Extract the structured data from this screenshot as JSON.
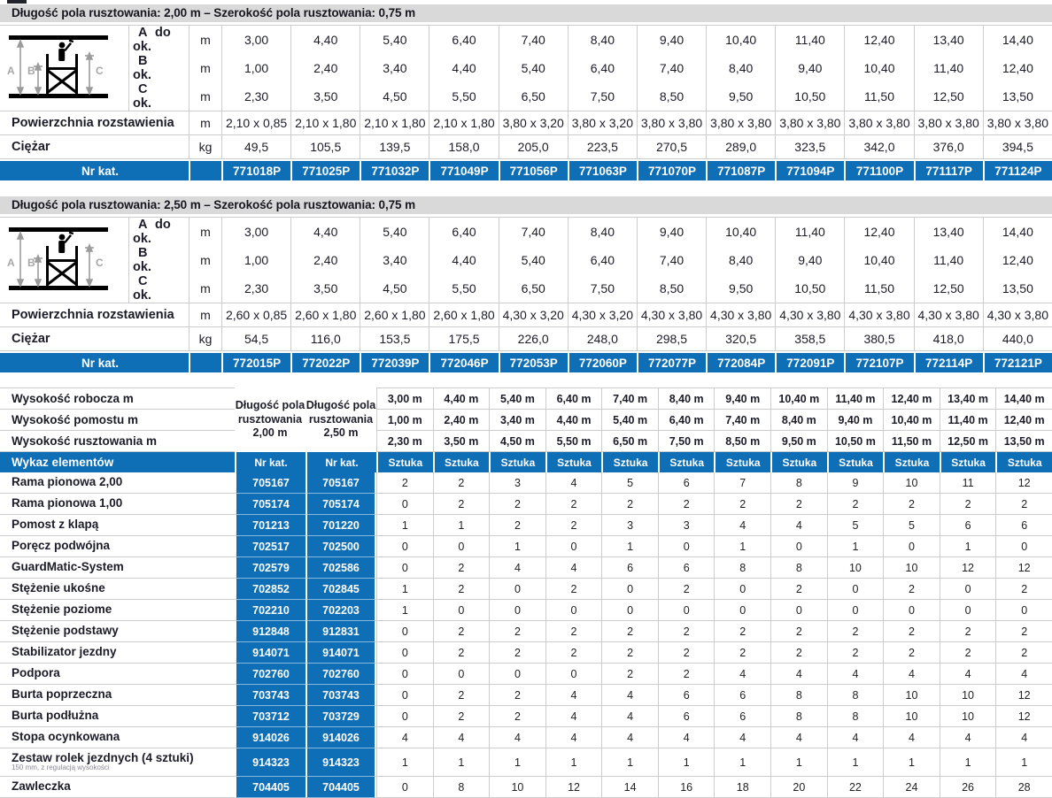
{
  "colors": {
    "accent_blue": "#0e6eb6",
    "title_bar_gray": "#d9d9d9",
    "grid_line": "#cccccc",
    "dark_text": "#1c1c28"
  },
  "icons": {
    "diagram": "scaffold-height-diagram-icon"
  },
  "table1": {
    "title": "Długość pola rusztowania: 2,00 m – Szerokość pola rusztowania: 0,75 m",
    "letter_rows": [
      {
        "letter": "A",
        "mid": "do",
        "approx": "ok.",
        "unit": "m",
        "values": [
          "3,00",
          "4,40",
          "5,40",
          "6,40",
          "7,40",
          "8,40",
          "9,40",
          "10,40",
          "11,40",
          "12,40",
          "13,40",
          "14,40"
        ]
      },
      {
        "letter": "B",
        "mid": "",
        "approx": "ok.",
        "unit": "m",
        "values": [
          "1,00",
          "2,40",
          "3,40",
          "4,40",
          "5,40",
          "6,40",
          "7,40",
          "8,40",
          "9,40",
          "10,40",
          "11,40",
          "12,40"
        ]
      },
      {
        "letter": "C",
        "mid": "",
        "approx": "ok.",
        "unit": "m",
        "values": [
          "2,30",
          "3,50",
          "4,50",
          "5,50",
          "6,50",
          "7,50",
          "8,50",
          "9,50",
          "10,50",
          "11,50",
          "12,50",
          "13,50"
        ]
      }
    ],
    "spread": {
      "label": "Powierzchnia rozstawienia",
      "unit": "m",
      "values": [
        "2,10 x 0,85",
        "2,10 x 1,80",
        "2,10 x 1,80",
        "2,10 x 1,80",
        "3,80 x 3,20",
        "3,80 x 3,20",
        "3,80 x 3,80",
        "3,80 x 3,80",
        "3,80 x 3,80",
        "3,80 x 3,80",
        "3,80 x 3,80",
        "3,80 x 3,80"
      ]
    },
    "weight": {
      "label": "Ciężar",
      "unit": "kg",
      "values": [
        "49,5",
        "105,5",
        "139,5",
        "158,0",
        "205,0",
        "223,5",
        "270,5",
        "289,0",
        "323,5",
        "342,0",
        "376,0",
        "394,5"
      ]
    },
    "catalog": {
      "label": "Nr kat.",
      "values": [
        "771018P",
        "771025P",
        "771032P",
        "771049P",
        "771056P",
        "771063P",
        "771070P",
        "771087P",
        "771094P",
        "771100P",
        "771117P",
        "771124P"
      ]
    }
  },
  "table2": {
    "title": "Długość pola rusztowania: 2,50 m – Szerokość pola rusztowania: 0,75 m",
    "letter_rows": [
      {
        "letter": "A",
        "mid": "do",
        "approx": "ok.",
        "unit": "m",
        "values": [
          "3,00",
          "4,40",
          "5,40",
          "6,40",
          "7,40",
          "8,40",
          "9,40",
          "10,40",
          "11,40",
          "12,40",
          "13,40",
          "14,40"
        ]
      },
      {
        "letter": "B",
        "mid": "",
        "approx": "ok.",
        "unit": "m",
        "values": [
          "1,00",
          "2,40",
          "3,40",
          "4,40",
          "5,40",
          "6,40",
          "7,40",
          "8,40",
          "9,40",
          "10,40",
          "11,40",
          "12,40"
        ]
      },
      {
        "letter": "C",
        "mid": "",
        "approx": "ok.",
        "unit": "m",
        "values": [
          "2,30",
          "3,50",
          "4,50",
          "5,50",
          "6,50",
          "7,50",
          "8,50",
          "9,50",
          "10,50",
          "11,50",
          "12,50",
          "13,50"
        ]
      }
    ],
    "spread": {
      "label": "Powierzchnia rozstawienia",
      "unit": "m",
      "values": [
        "2,60 x 0,85",
        "2,60 x 1,80",
        "2,60 x 1,80",
        "2,60 x 1,80",
        "4,30 x 3,20",
        "4,30 x 3,20",
        "4,30 x 3,80",
        "4,30 x 3,80",
        "4,30 x 3,80",
        "4,30 x 3,80",
        "4,30 x 3,80",
        "4,30 x 3,80"
      ]
    },
    "weight": {
      "label": "Ciężar",
      "unit": "kg",
      "values": [
        "54,5",
        "116,0",
        "153,5",
        "175,5",
        "226,0",
        "248,0",
        "298,5",
        "320,5",
        "358,5",
        "380,5",
        "418,0",
        "440,0"
      ]
    },
    "catalog": {
      "label": "Nr kat.",
      "values": [
        "772015P",
        "772022P",
        "772039P",
        "772046P",
        "772053P",
        "772060P",
        "772077P",
        "772084P",
        "772091P",
        "772107P",
        "772114P",
        "772121P"
      ]
    }
  },
  "table3": {
    "height_rows": [
      {
        "label": "Wysokość robocza m",
        "values": [
          "3,00 m",
          "4,40 m",
          "5,40 m",
          "6,40 m",
          "7,40 m",
          "8,40 m",
          "9,40 m",
          "10,40 m",
          "11,40 m",
          "12,40 m",
          "13,40 m",
          "14,40 m"
        ]
      },
      {
        "label": "Wysokość pomostu m",
        "values": [
          "1,00 m",
          "2,40 m",
          "3,40 m",
          "4,40 m",
          "5,40 m",
          "6,40 m",
          "7,40 m",
          "8,40 m",
          "9,40 m",
          "10,40 m",
          "11,40 m",
          "12,40 m"
        ]
      },
      {
        "label": "Wysokość rusztowania m",
        "values": [
          "2,30 m",
          "3,50 m",
          "4,50 m",
          "5,50 m",
          "6,50 m",
          "7,50 m",
          "8,50 m",
          "9,50 m",
          "10,50 m",
          "11,50 m",
          "12,50 m",
          "13,50 m"
        ]
      }
    ],
    "col_group_headers": [
      "Długość pola rusztowania 2,00 m",
      "Długość pola rusztowania 2,50 m"
    ],
    "header_row": {
      "label": "Wykaz elementów",
      "nrkat": "Nr kat.",
      "sztuka": "Sztuka"
    },
    "components": [
      {
        "name": "Rama pionowa 2,00",
        "sub": "",
        "kat1": "705167",
        "kat2": "705167",
        "qty": [
          2,
          2,
          3,
          4,
          5,
          6,
          7,
          8,
          9,
          10,
          11,
          12
        ]
      },
      {
        "name": "Rama pionowa 1,00",
        "sub": "",
        "kat1": "705174",
        "kat2": "705174",
        "qty": [
          0,
          2,
          2,
          2,
          2,
          2,
          2,
          2,
          2,
          2,
          2,
          2
        ]
      },
      {
        "name": "Pomost z klapą",
        "sub": "",
        "kat1": "701213",
        "kat2": "701220",
        "qty": [
          1,
          1,
          2,
          2,
          3,
          3,
          4,
          4,
          5,
          5,
          6,
          6
        ]
      },
      {
        "name": "Poręcz podwójna",
        "sub": "",
        "kat1": "702517",
        "kat2": "702500",
        "qty": [
          0,
          0,
          1,
          0,
          1,
          0,
          1,
          0,
          1,
          0,
          1,
          0
        ]
      },
      {
        "name": "GuardMatic-System",
        "sub": "",
        "kat1": "702579",
        "kat2": "702586",
        "qty": [
          0,
          2,
          4,
          4,
          6,
          6,
          8,
          8,
          10,
          10,
          12,
          12
        ]
      },
      {
        "name": "Stężenie ukośne",
        "sub": "",
        "kat1": "702852",
        "kat2": "702845",
        "qty": [
          1,
          2,
          0,
          2,
          0,
          2,
          0,
          2,
          0,
          2,
          0,
          2
        ]
      },
      {
        "name": "Stężenie poziome",
        "sub": "",
        "kat1": "702210",
        "kat2": "702203",
        "qty": [
          1,
          0,
          0,
          0,
          0,
          0,
          0,
          0,
          0,
          0,
          0,
          0
        ]
      },
      {
        "name": "Stężenie podstawy",
        "sub": "",
        "kat1": "912848",
        "kat2": "912831",
        "qty": [
          0,
          2,
          2,
          2,
          2,
          2,
          2,
          2,
          2,
          2,
          2,
          2
        ]
      },
      {
        "name": "Stabilizator jezdny",
        "sub": "",
        "kat1": "914071",
        "kat2": "914071",
        "qty": [
          0,
          2,
          2,
          2,
          2,
          2,
          2,
          2,
          2,
          2,
          2,
          2
        ]
      },
      {
        "name": "Podpora",
        "sub": "",
        "kat1": "702760",
        "kat2": "702760",
        "qty": [
          0,
          0,
          0,
          0,
          2,
          2,
          4,
          4,
          4,
          4,
          4,
          4
        ]
      },
      {
        "name": "Burta poprzeczna",
        "sub": "",
        "kat1": "703743",
        "kat2": "703743",
        "qty": [
          0,
          2,
          2,
          4,
          4,
          6,
          6,
          8,
          8,
          10,
          10,
          12
        ]
      },
      {
        "name": "Burta podłużna",
        "sub": "",
        "kat1": "703712",
        "kat2": "703729",
        "qty": [
          0,
          2,
          2,
          4,
          4,
          6,
          6,
          8,
          8,
          10,
          10,
          12
        ]
      },
      {
        "name": "Stopa ocynkowana",
        "sub": "",
        "kat1": "914026",
        "kat2": "914026",
        "qty": [
          4,
          4,
          4,
          4,
          4,
          4,
          4,
          4,
          4,
          4,
          4,
          4
        ]
      },
      {
        "name": "Zestaw rolek jezdnych (4 sztuki)",
        "sub": "150 mm, z regulacją wysokości",
        "kat1": "914323",
        "kat2": "914323",
        "qty": [
          1,
          1,
          1,
          1,
          1,
          1,
          1,
          1,
          1,
          1,
          1,
          1
        ]
      },
      {
        "name": "Zawleczka",
        "sub": "",
        "kat1": "704405",
        "kat2": "704405",
        "qty": [
          0,
          8,
          10,
          12,
          14,
          16,
          18,
          20,
          22,
          24,
          26,
          28
        ]
      }
    ]
  }
}
